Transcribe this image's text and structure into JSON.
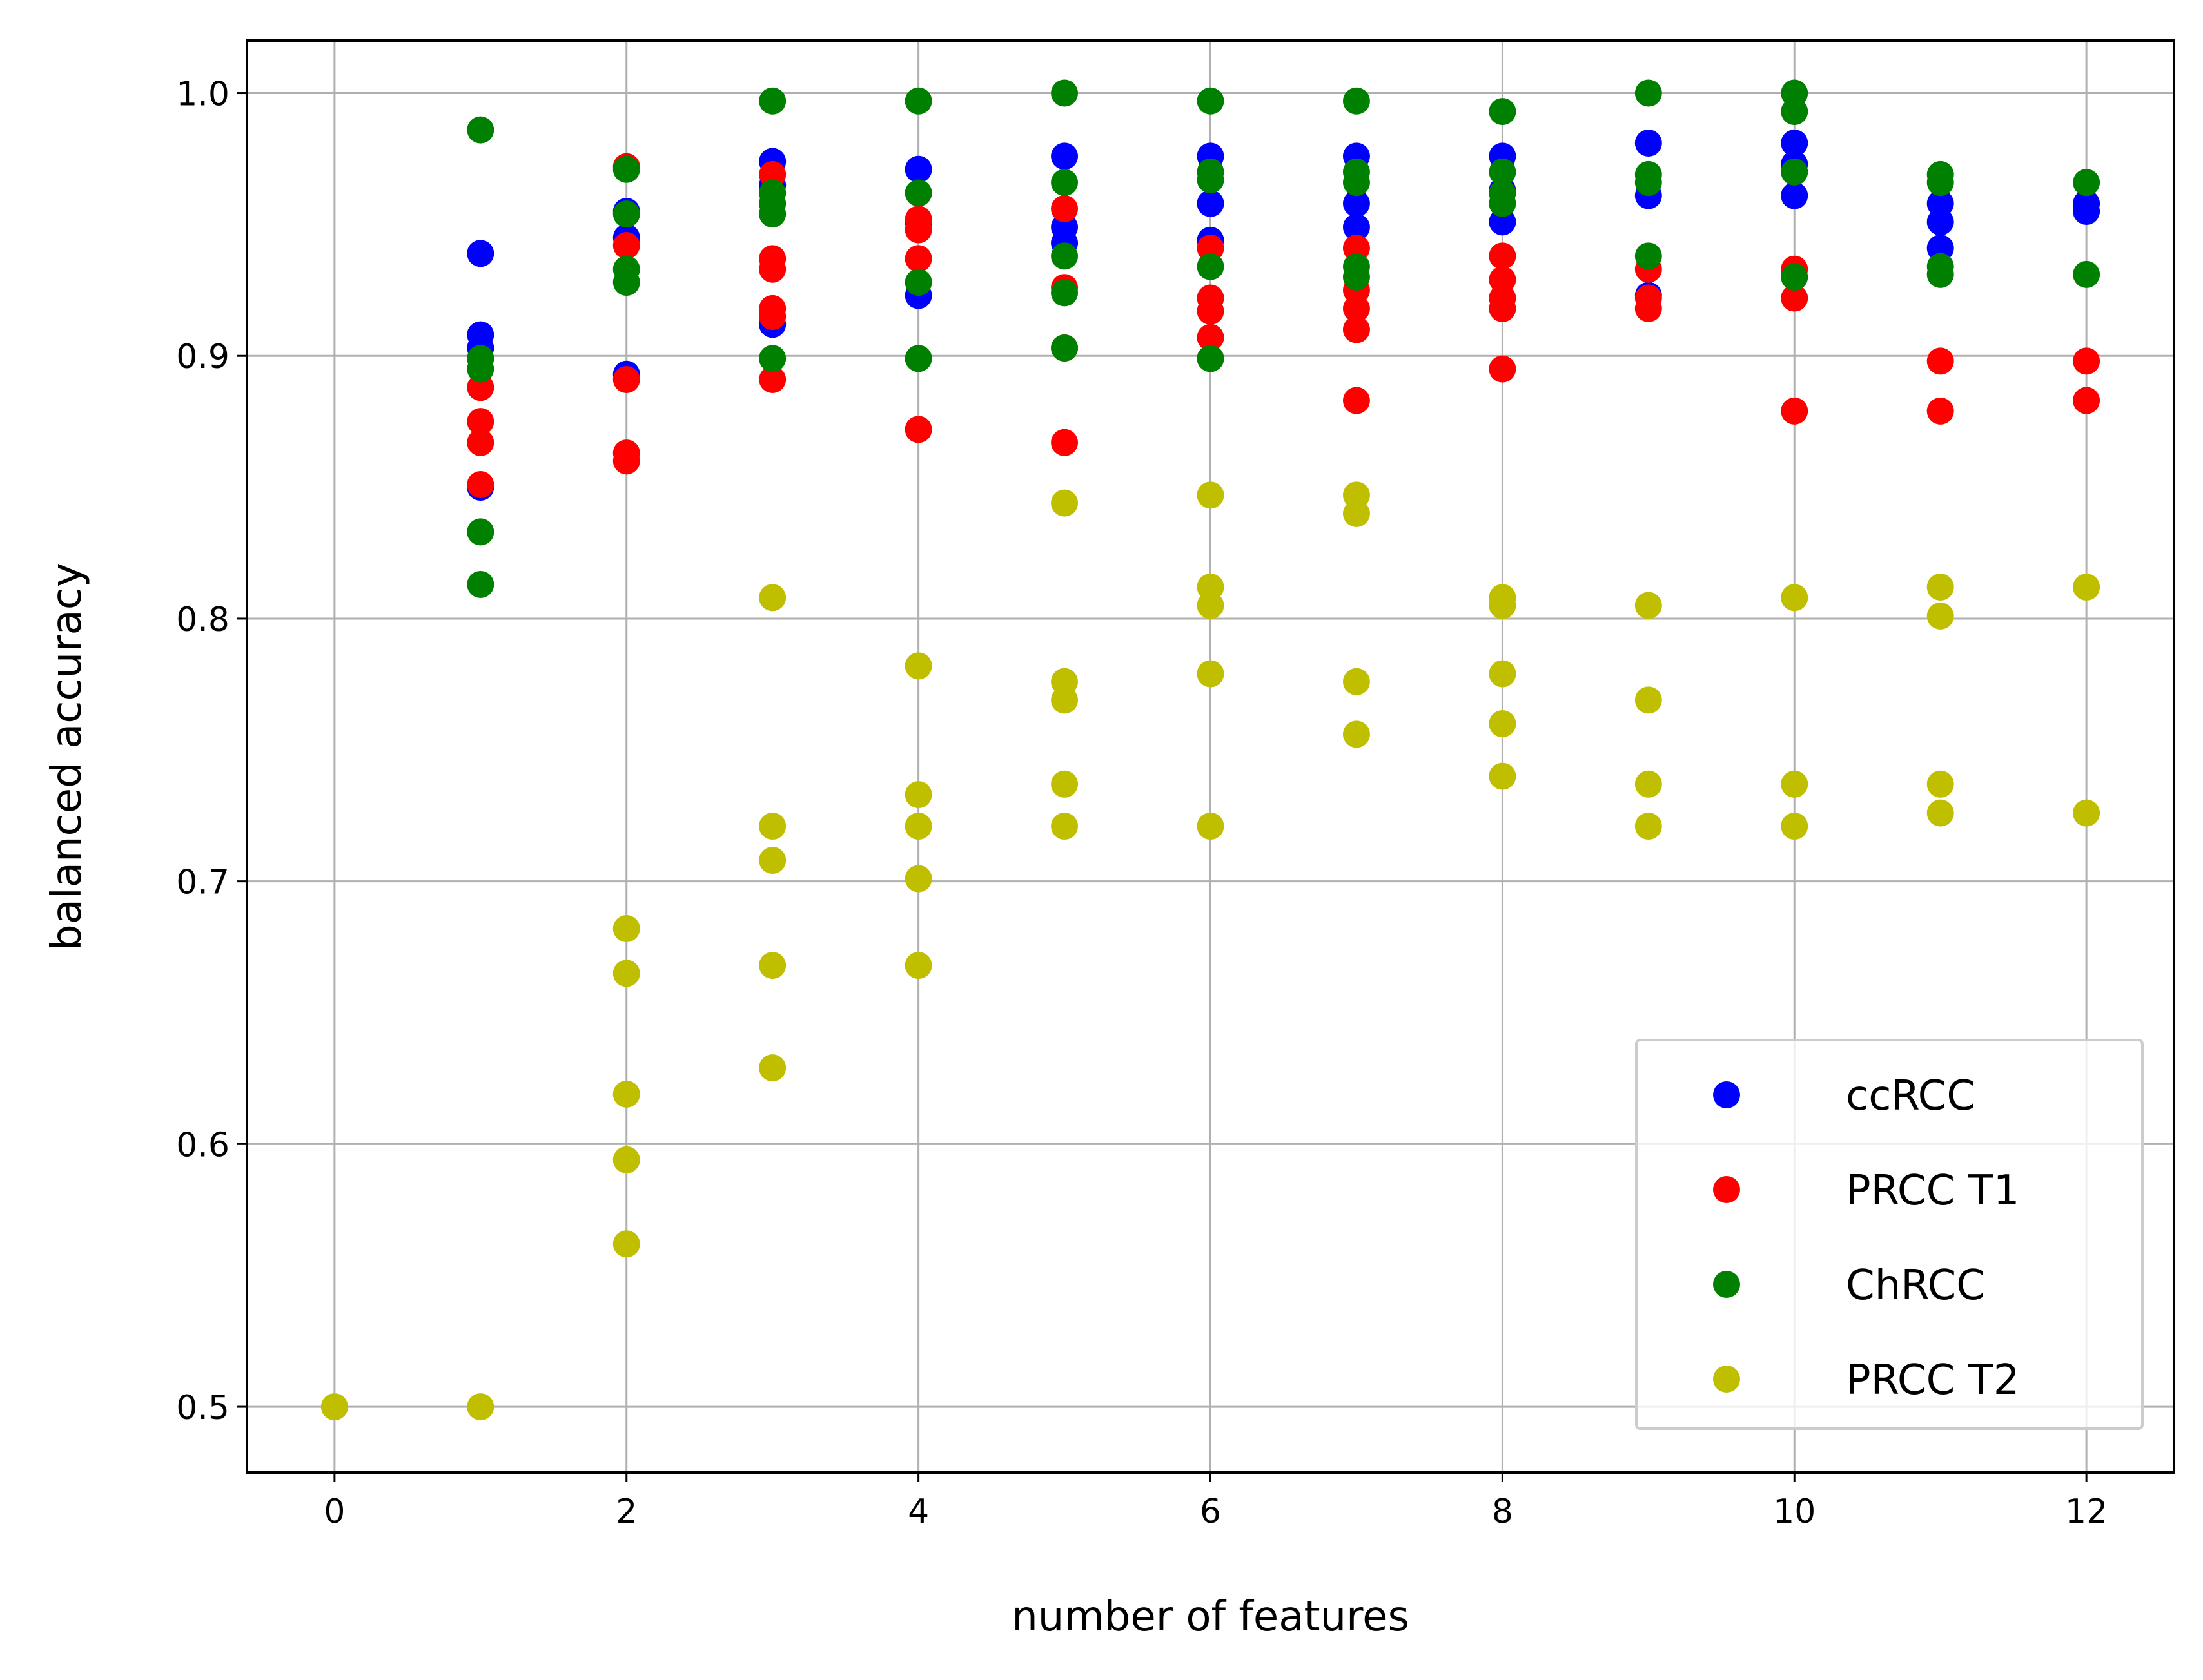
{
  "chart_data": {
    "type": "scatter",
    "title": "",
    "xlabel": "number of features",
    "ylabel": "balanced accuracy",
    "xlim": [
      -0.6,
      12.6
    ],
    "ylim": [
      0.475,
      1.02
    ],
    "xticks": [
      0,
      2,
      4,
      6,
      8,
      10,
      12
    ],
    "yticks": [
      0.5,
      0.6,
      0.7,
      0.8,
      0.9,
      1.0
    ],
    "xtick_labels": [
      "0",
      "2",
      "4",
      "6",
      "8",
      "10",
      "12"
    ],
    "ytick_labels": [
      "0.5",
      "0.6",
      "0.7",
      "0.8",
      "0.9",
      "1.0"
    ],
    "grid": true,
    "legend_position": "lower-right",
    "series": [
      {
        "name": "ccRCC",
        "color": "#0000ff",
        "points": [
          [
            1,
            0.939
          ],
          [
            1,
            0.908
          ],
          [
            1,
            0.903
          ],
          [
            1,
            0.85
          ],
          [
            2,
            0.955
          ],
          [
            2,
            0.945
          ],
          [
            2,
            0.893
          ],
          [
            3,
            0.974
          ],
          [
            3,
            0.965
          ],
          [
            3,
            0.912
          ],
          [
            4,
            0.971
          ],
          [
            4,
            0.951
          ],
          [
            4,
            0.923
          ],
          [
            5,
            0.976
          ],
          [
            5,
            0.949
          ],
          [
            5,
            0.943
          ],
          [
            6,
            0.976
          ],
          [
            6,
            0.958
          ],
          [
            6,
            0.944
          ],
          [
            7,
            0.976
          ],
          [
            7,
            0.958
          ],
          [
            7,
            0.949
          ],
          [
            8,
            0.976
          ],
          [
            8,
            0.963
          ],
          [
            8,
            0.951
          ],
          [
            9,
            0.981
          ],
          [
            9,
            0.961
          ],
          [
            9,
            0.923
          ],
          [
            10,
            0.981
          ],
          [
            10,
            0.973
          ],
          [
            10,
            0.961
          ],
          [
            11,
            0.958
          ],
          [
            11,
            0.951
          ],
          [
            11,
            0.941
          ],
          [
            12,
            0.958
          ],
          [
            12,
            0.955
          ]
        ]
      },
      {
        "name": "PRCC T1",
        "color": "#ff0000",
        "points": [
          [
            1,
            0.888
          ],
          [
            1,
            0.875
          ],
          [
            1,
            0.867
          ],
          [
            1,
            0.851
          ],
          [
            2,
            0.972
          ],
          [
            2,
            0.942
          ],
          [
            2,
            0.891
          ],
          [
            2,
            0.863
          ],
          [
            2,
            0.86
          ],
          [
            3,
            0.969
          ],
          [
            3,
            0.937
          ],
          [
            3,
            0.933
          ],
          [
            3,
            0.918
          ],
          [
            3,
            0.915
          ],
          [
            3,
            0.891
          ],
          [
            4,
            0.952
          ],
          [
            4,
            0.948
          ],
          [
            4,
            0.937
          ],
          [
            4,
            0.872
          ],
          [
            5,
            0.956
          ],
          [
            5,
            0.926
          ],
          [
            5,
            0.903
          ],
          [
            5,
            0.867
          ],
          [
            6,
            0.941
          ],
          [
            6,
            0.922
          ],
          [
            6,
            0.917
          ],
          [
            6,
            0.907
          ],
          [
            6,
            0.899
          ],
          [
            7,
            0.941
          ],
          [
            7,
            0.925
          ],
          [
            7,
            0.918
          ],
          [
            7,
            0.91
          ],
          [
            7,
            0.883
          ],
          [
            8,
            0.938
          ],
          [
            8,
            0.929
          ],
          [
            8,
            0.922
          ],
          [
            8,
            0.918
          ],
          [
            8,
            0.895
          ],
          [
            9,
            0.933
          ],
          [
            9,
            0.922
          ],
          [
            9,
            0.918
          ],
          [
            10,
            0.933
          ],
          [
            10,
            0.922
          ],
          [
            10,
            0.879
          ],
          [
            11,
            0.898
          ],
          [
            11,
            0.879
          ],
          [
            12,
            0.898
          ],
          [
            12,
            0.883
          ]
        ]
      },
      {
        "name": "ChRCC",
        "color": "#008000",
        "points": [
          [
            1,
            0.986
          ],
          [
            1,
            0.899
          ],
          [
            1,
            0.895
          ],
          [
            1,
            0.833
          ],
          [
            1,
            0.813
          ],
          [
            2,
            0.971
          ],
          [
            2,
            0.954
          ],
          [
            2,
            0.933
          ],
          [
            2,
            0.928
          ],
          [
            3,
            0.997
          ],
          [
            3,
            0.962
          ],
          [
            3,
            0.958
          ],
          [
            3,
            0.954
          ],
          [
            3,
            0.899
          ],
          [
            4,
            0.997
          ],
          [
            4,
            0.962
          ],
          [
            4,
            0.928
          ],
          [
            4,
            0.899
          ],
          [
            5,
            1.0
          ],
          [
            5,
            0.966
          ],
          [
            5,
            0.938
          ],
          [
            5,
            0.924
          ],
          [
            5,
            0.903
          ],
          [
            6,
            0.997
          ],
          [
            6,
            0.97
          ],
          [
            6,
            0.967
          ],
          [
            6,
            0.934
          ],
          [
            6,
            0.899
          ],
          [
            7,
            0.997
          ],
          [
            7,
            0.97
          ],
          [
            7,
            0.966
          ],
          [
            7,
            0.934
          ],
          [
            7,
            0.93
          ],
          [
            8,
            0.993
          ],
          [
            8,
            0.97
          ],
          [
            8,
            0.962
          ],
          [
            8,
            0.958
          ],
          [
            9,
            1.0
          ],
          [
            9,
            0.969
          ],
          [
            9,
            0.966
          ],
          [
            9,
            0.938
          ],
          [
            10,
            1.0
          ],
          [
            10,
            0.993
          ],
          [
            10,
            0.97
          ],
          [
            10,
            0.93
          ],
          [
            11,
            0.969
          ],
          [
            11,
            0.966
          ],
          [
            11,
            0.934
          ],
          [
            11,
            0.931
          ],
          [
            12,
            0.966
          ],
          [
            12,
            0.931
          ]
        ]
      },
      {
        "name": "PRCC T2",
        "color": "#bfbf00",
        "points": [
          [
            0,
            0.5
          ],
          [
            1,
            0.5
          ],
          [
            2,
            0.682
          ],
          [
            2,
            0.665
          ],
          [
            2,
            0.619
          ],
          [
            2,
            0.594
          ],
          [
            2,
            0.562
          ],
          [
            3,
            0.808
          ],
          [
            3,
            0.721
          ],
          [
            3,
            0.708
          ],
          [
            3,
            0.668
          ],
          [
            3,
            0.629
          ],
          [
            4,
            0.782
          ],
          [
            4,
            0.733
          ],
          [
            4,
            0.721
          ],
          [
            4,
            0.701
          ],
          [
            4,
            0.668
          ],
          [
            5,
            0.844
          ],
          [
            5,
            0.776
          ],
          [
            5,
            0.769
          ],
          [
            5,
            0.737
          ],
          [
            5,
            0.721
          ],
          [
            6,
            0.847
          ],
          [
            6,
            0.812
          ],
          [
            6,
            0.805
          ],
          [
            6,
            0.779
          ],
          [
            6,
            0.721
          ],
          [
            7,
            0.847
          ],
          [
            7,
            0.84
          ],
          [
            7,
            0.776
          ],
          [
            7,
            0.756
          ],
          [
            8,
            0.808
          ],
          [
            8,
            0.805
          ],
          [
            8,
            0.779
          ],
          [
            8,
            0.76
          ],
          [
            8,
            0.74
          ],
          [
            9,
            0.805
          ],
          [
            9,
            0.769
          ],
          [
            9,
            0.737
          ],
          [
            9,
            0.721
          ],
          [
            10,
            0.808
          ],
          [
            10,
            0.737
          ],
          [
            10,
            0.721
          ],
          [
            11,
            0.812
          ],
          [
            11,
            0.801
          ],
          [
            11,
            0.737
          ],
          [
            11,
            0.726
          ],
          [
            12,
            0.812
          ],
          [
            12,
            0.726
          ]
        ]
      }
    ]
  }
}
